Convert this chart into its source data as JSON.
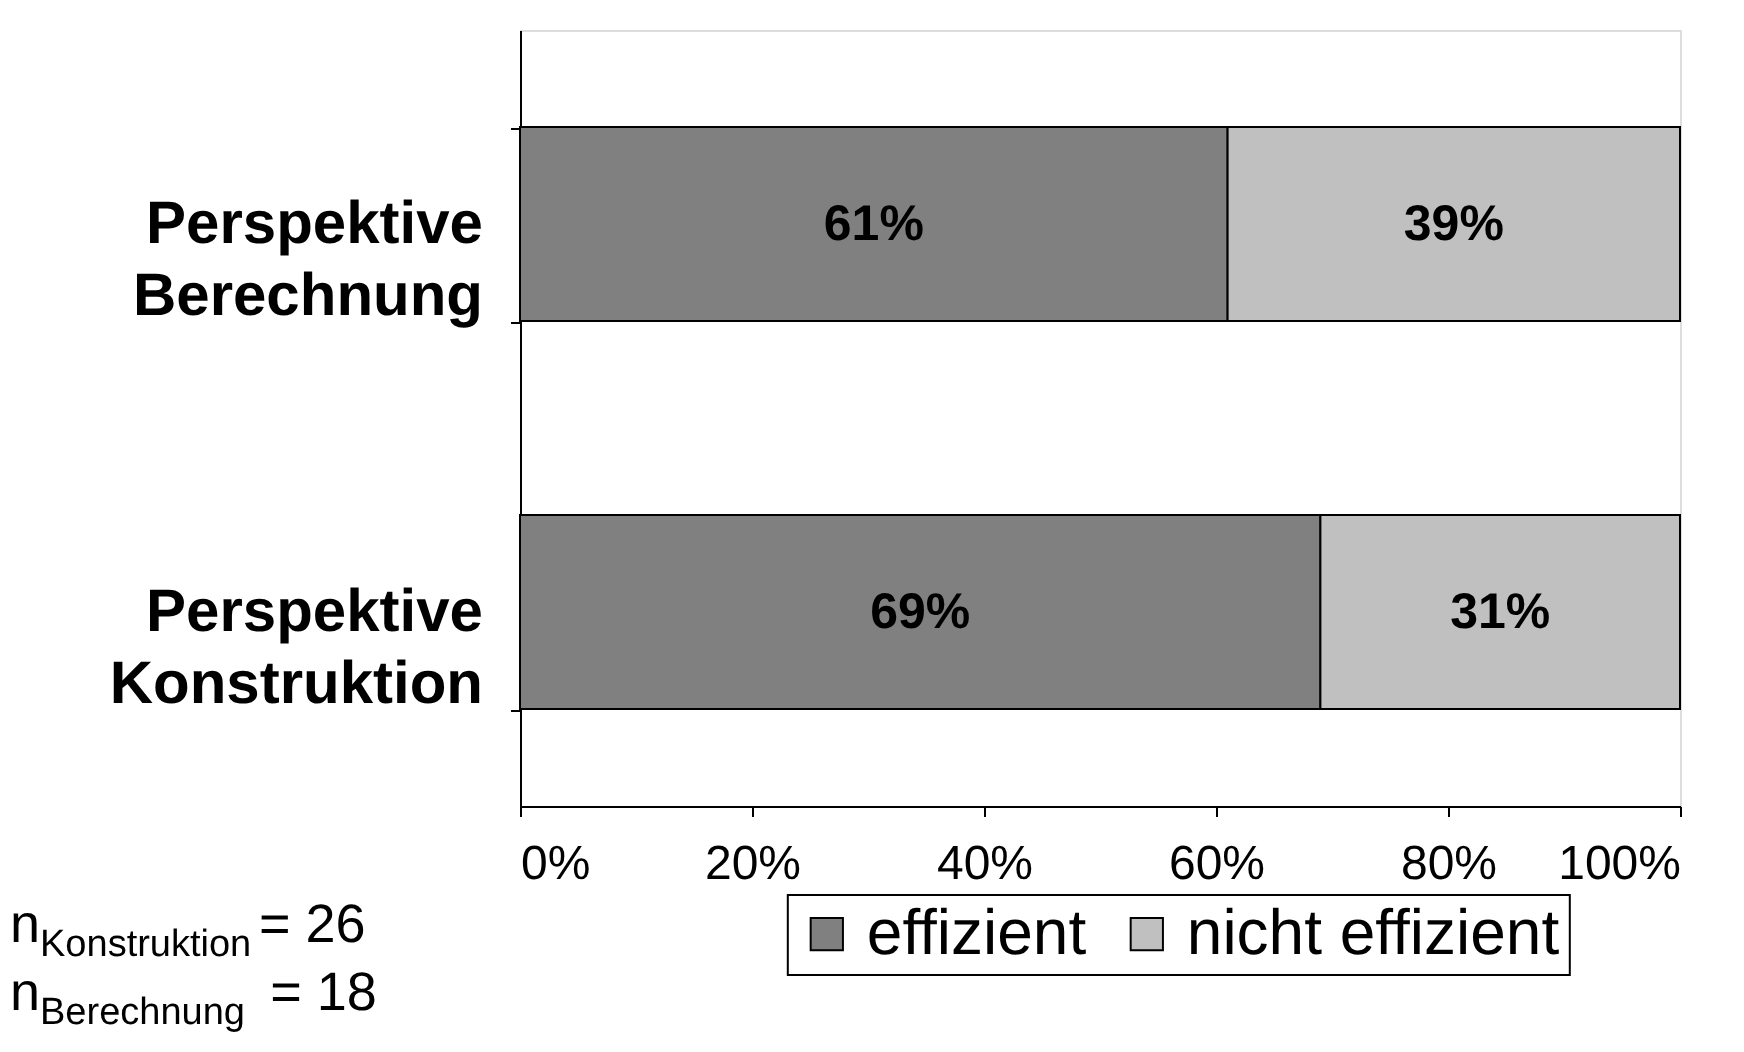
{
  "chart_data": {
    "type": "bar",
    "orientation": "horizontal",
    "stacked": true,
    "categories": [
      "Perspektive Berechnung",
      "Perspektive Konstruktion"
    ],
    "series": [
      {
        "name": "effizient",
        "color": "#808080",
        "values": [
          61,
          69
        ],
        "value_labels": [
          "61%",
          "69%"
        ]
      },
      {
        "name": "nicht effizient",
        "color": "#c0c0c0",
        "values": [
          39,
          31
        ],
        "value_labels": [
          "39%",
          "31%"
        ]
      }
    ],
    "xlim": [
      0,
      100
    ],
    "xticks": [
      {
        "value": 0,
        "label": "0%"
      },
      {
        "value": 20,
        "label": "20%"
      },
      {
        "value": 40,
        "label": "40%"
      },
      {
        "value": 60,
        "label": "60%"
      },
      {
        "value": 80,
        "label": "80%"
      },
      {
        "value": 100,
        "label": "100%"
      }
    ],
    "grid": false,
    "legend": "bottom right",
    "annotations": [
      "n$_{Konstruktion}$= 26",
      "n$_{Berechnung}$ = 18"
    ]
  }
}
